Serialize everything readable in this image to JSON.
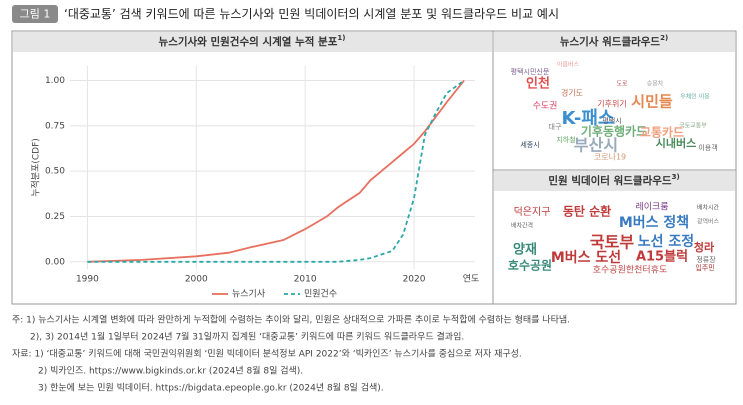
{
  "header": {
    "badge": "그림 1",
    "title": "‘대중교통’ 검색 키워드에 따른 뉴스기사와 민원 빅데이터의 시계열 분포 및 워드클라우드 비교 예시"
  },
  "chart_data": {
    "type": "line",
    "title": "뉴스기사와 민원건수의 시계열 누적 분포",
    "title_note": "1)",
    "y_label": "누적분포(CDF)",
    "x_label": "연도",
    "x": [
      1990,
      1995,
      2000,
      2003,
      2005,
      2008,
      2010,
      2012,
      2013,
      2015,
      2016,
      2018,
      2019,
      2020,
      2021,
      2022,
      2023,
      2024.6
    ],
    "series": [
      {
        "name": "뉴스기사",
        "color": "#e8705f",
        "dash": false,
        "values": [
          0,
          0.01,
          0.03,
          0.05,
          0.08,
          0.12,
          0.18,
          0.25,
          0.3,
          0.38,
          0.45,
          0.55,
          0.6,
          0.65,
          0.72,
          0.8,
          0.88,
          1.0
        ]
      },
      {
        "name": "민원건수",
        "color": "#2aa8a8",
        "dash": true,
        "values": [
          0,
          0,
          0,
          0,
          0,
          0,
          0,
          0,
          0,
          0.01,
          0.02,
          0.06,
          0.15,
          0.35,
          0.7,
          0.82,
          0.93,
          1.0
        ]
      }
    ],
    "xlim": [
      1988.4,
      2025.6
    ],
    "ylim": [
      -0.04,
      1.08
    ],
    "xticks": [
      1990,
      2000,
      2010,
      2020
    ],
    "yticks": [
      {
        "value": 0,
        "label": "0.00"
      },
      {
        "value": 0.25,
        "label": "0.25"
      },
      {
        "value": 0.5,
        "label": "0.50"
      },
      {
        "value": 0.75,
        "label": "0.75"
      },
      {
        "value": 1,
        "label": "1.00"
      }
    ],
    "grid": true,
    "legend": "bottom"
  },
  "news_cloud": {
    "title": "뉴스기사 워드클라우드",
    "title_note": "2)",
    "words": [
      "평택시민신문",
      "아름버스",
      "인천",
      "도로",
      "승용차",
      "경기도",
      "시민들",
      "우체인 이용",
      "수도권",
      "기후위기",
      "K-패스",
      "평택시",
      "대구",
      "기후동행카드",
      "교통카드",
      "국토교통부",
      "지하철",
      "부산시",
      "세종시",
      "시내버스",
      "이용객",
      "코로나19"
    ]
  },
  "complaint_cloud": {
    "title": "민원 빅데이터 워드클라우드",
    "title_note": "3)",
    "words": [
      "덕은지구",
      "동탄 순환",
      "레이크룸",
      "배차시간",
      "M버스 정책",
      "배차간격",
      "광역버스",
      "국토부",
      "노선 조정",
      "양재",
      "M버스 도선",
      "A15블럭",
      "청라",
      "호수공원",
      "정류장",
      "호수공원한천터휴도",
      "입주민"
    ]
  },
  "notes": [
    "주: 1) 뉴스기사는 시계열 변화에 따라 완만하게 누적합에 수렴하는 추이와 달리, 민원은 상대적으로 가파른 추이로 누적합에 수렴하는 형태를 나타냄.",
    "2), 3) 2014년 1월 1일부터 2024년 7월 31일까지 집계된 ‘대중교통’ 키워드에 따른 키워드 워드클라우드 결과임.",
    "자료: 1) ‘대중교통’ 키워드에 대해 국민권익위원회 ‘민원 빅데이터 분석정보 API 2022’와 ‘빅카인즈’ 뉴스기사를 중심으로 저자 재구성.",
    "2) 빅카인즈. https://www.bigkinds.or.kr (2024년 8월 8일 검색).",
    "3) 한눈에 보는 민원 빅데이터. https://bigdata.epeople.go.kr (2024년 8월 8일 검색)."
  ]
}
